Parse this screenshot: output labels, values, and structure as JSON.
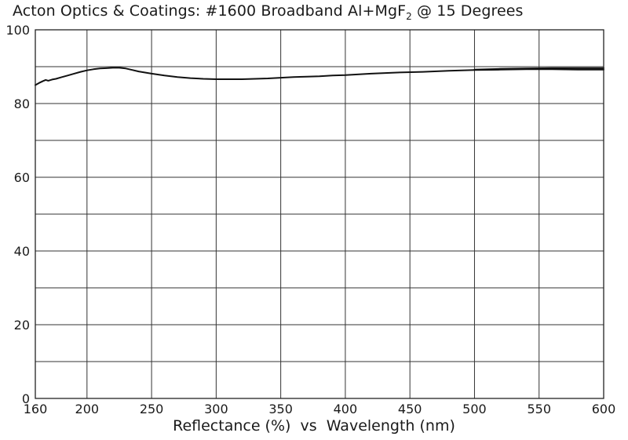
{
  "chart_data": {
    "type": "line",
    "title": {
      "prefix": "Acton Optics & Coatings: #1600 Broadband Al+MgF",
      "subscript": "2",
      "suffix": " @ 15 Degrees"
    },
    "xlabel": "Reflectance (%)  vs  Wavelength (nm)",
    "ylabel": "",
    "xlim": [
      160,
      600
    ],
    "ylim": [
      0,
      100
    ],
    "x_ticks": [
      160,
      200,
      250,
      300,
      350,
      400,
      450,
      500,
      550,
      600
    ],
    "y_ticks": [
      0,
      20,
      40,
      60,
      80,
      100
    ],
    "y_minor_gridlines": [
      10,
      30,
      50,
      70,
      90
    ],
    "grid": true,
    "legend": "none",
    "line_color": "#111111",
    "series": [
      {
        "x": [
          160,
          163,
          166,
          168,
          170,
          173,
          176,
          180,
          185,
          190,
          195,
          200,
          205,
          210,
          215,
          220,
          225,
          230,
          235,
          240,
          250,
          260,
          270,
          280,
          290,
          300,
          310,
          320,
          330,
          340,
          350,
          360,
          370,
          380,
          390,
          400,
          420,
          440,
          460,
          480,
          500,
          520,
          540,
          560,
          580,
          600
        ],
        "y": [
          85.0,
          85.6,
          86.1,
          86.4,
          86.2,
          86.5,
          86.7,
          87.1,
          87.6,
          88.1,
          88.6,
          89.0,
          89.3,
          89.5,
          89.6,
          89.7,
          89.7,
          89.5,
          89.1,
          88.7,
          88.1,
          87.6,
          87.2,
          86.9,
          86.7,
          86.6,
          86.6,
          86.6,
          86.7,
          86.8,
          87.0,
          87.2,
          87.3,
          87.4,
          87.6,
          87.7,
          88.1,
          88.4,
          88.6,
          88.9,
          89.1,
          89.2,
          89.3,
          89.3,
          89.2,
          89.2
        ]
      },
      {
        "x": [
          500,
          520,
          540,
          560,
          580,
          600
        ],
        "y": [
          89.2,
          89.4,
          89.5,
          89.6,
          89.6,
          89.6
        ]
      }
    ]
  }
}
